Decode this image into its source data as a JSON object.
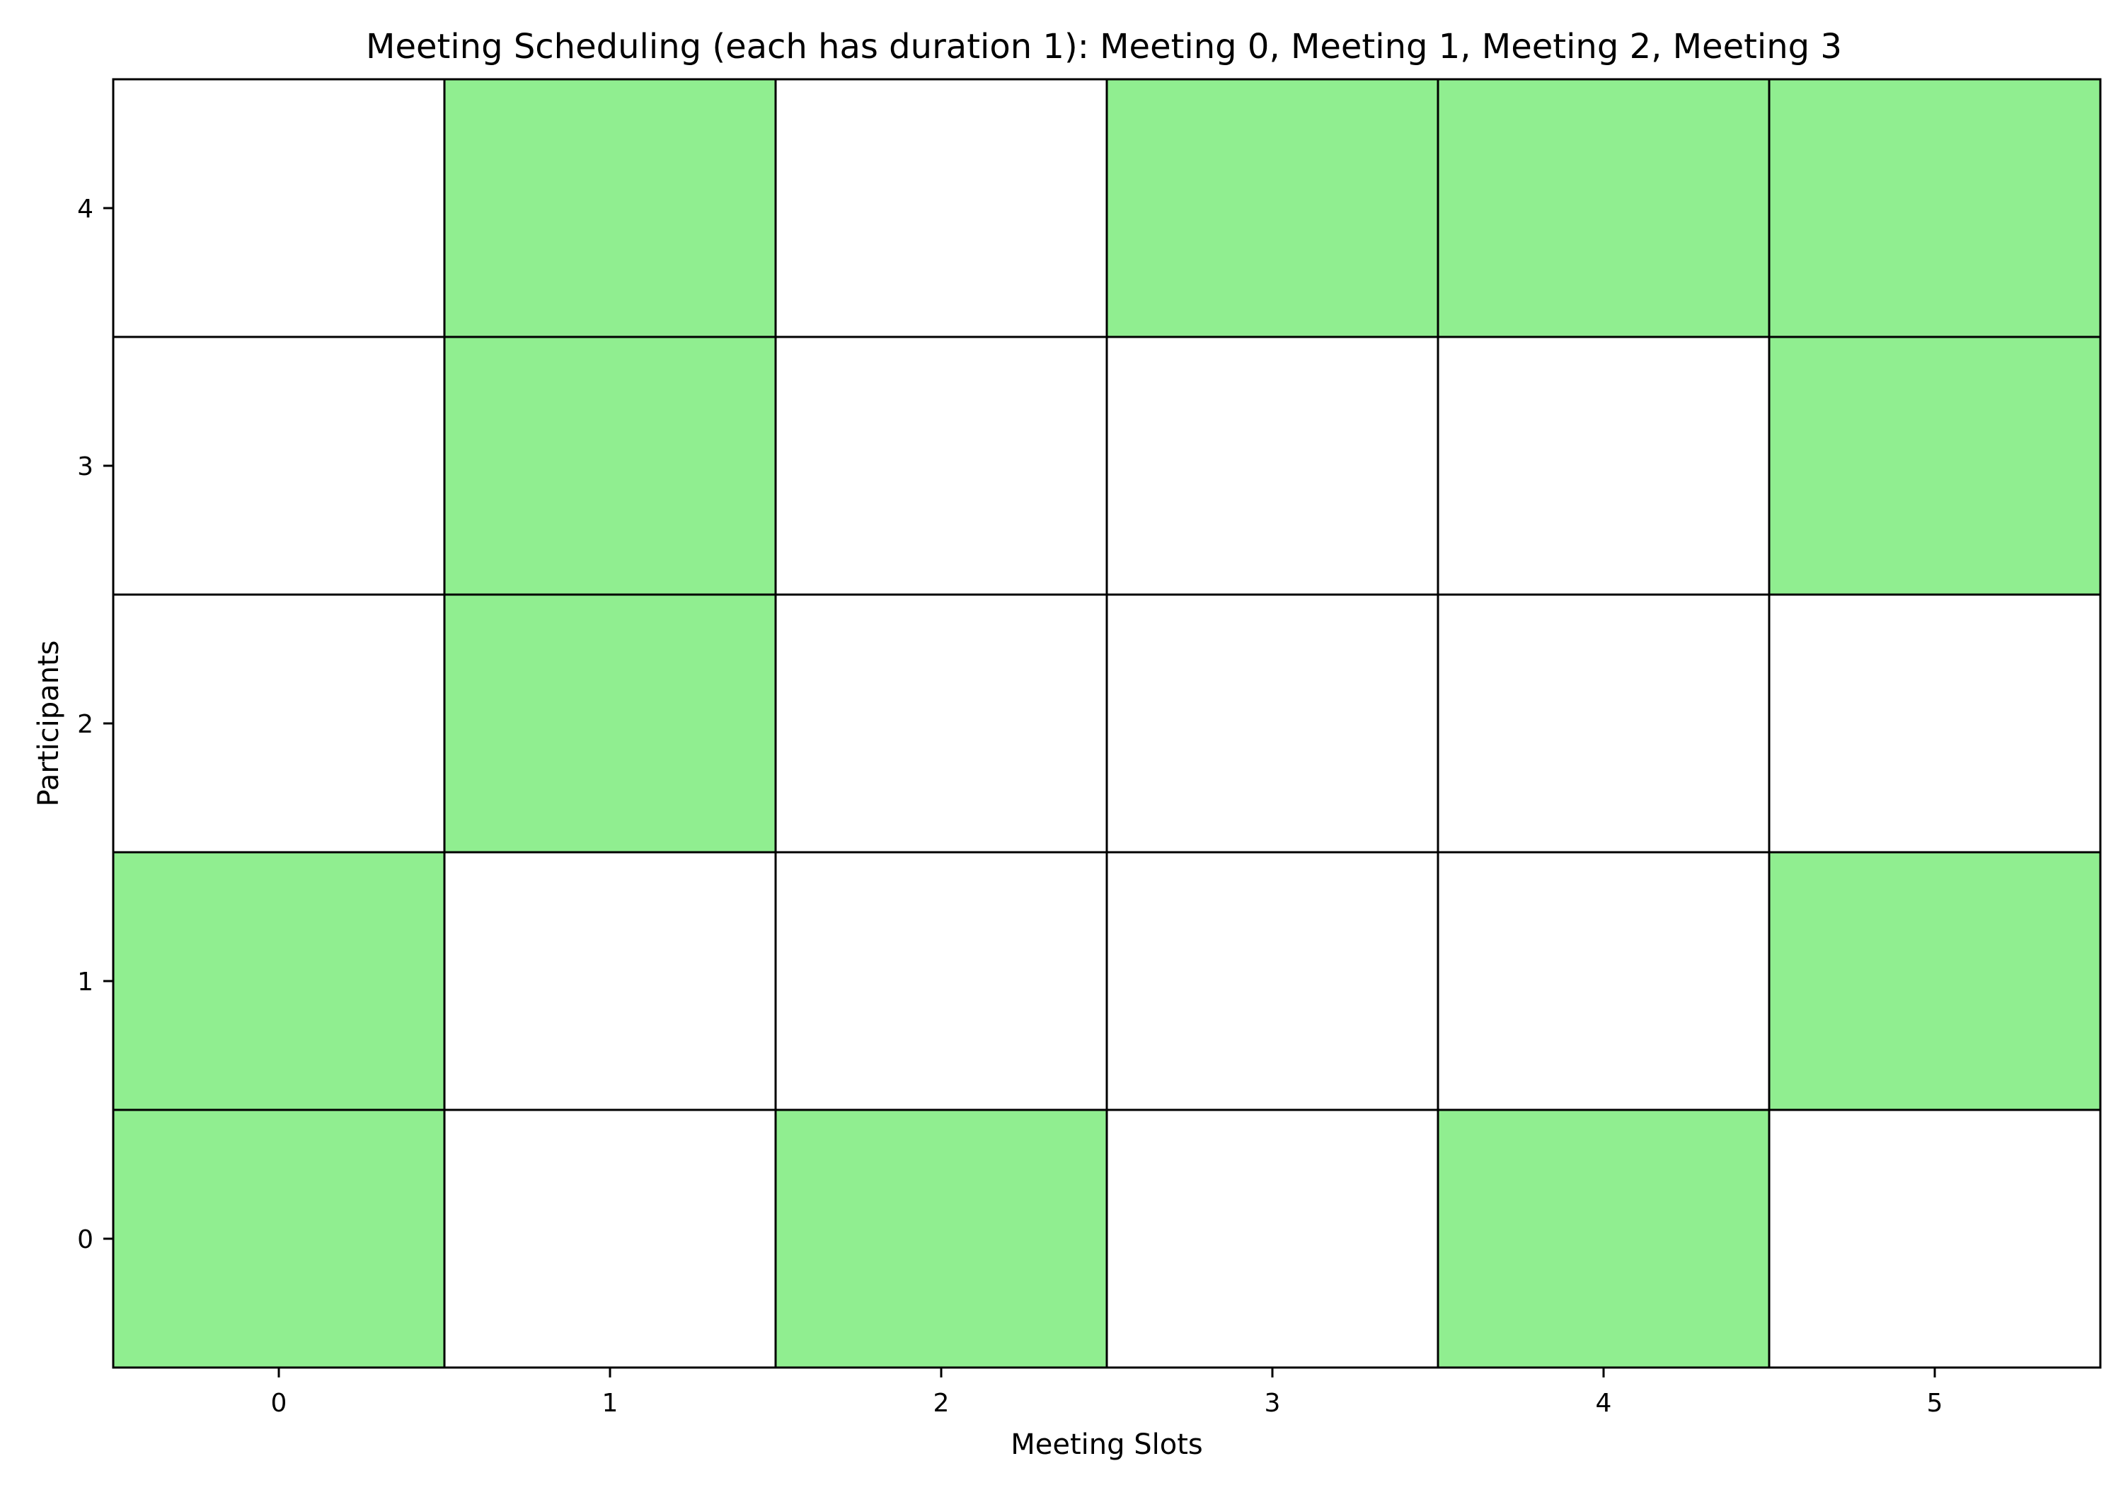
{
  "chart_data": {
    "type": "heatmap",
    "title": "Meeting Scheduling (each has duration 1): Meeting 0, Meeting 1, Meeting 2, Meeting 3",
    "xlabel": "Meeting Slots",
    "ylabel": "Participants",
    "x_categories": [
      "0",
      "1",
      "2",
      "3",
      "4",
      "5"
    ],
    "y_categories": [
      "0",
      "1",
      "2",
      "3",
      "4"
    ],
    "xlim": [
      -0.5,
      5.5
    ],
    "ylim": [
      -0.5,
      4.5
    ],
    "grid": false,
    "cell_colors": {
      "filled": "#90ee90",
      "empty": "#ffffff",
      "edge": "#000000"
    },
    "values": [
      [
        1,
        0,
        1,
        0,
        1,
        0
      ],
      [
        1,
        0,
        0,
        0,
        0,
        1
      ],
      [
        0,
        1,
        0,
        0,
        0,
        0
      ],
      [
        0,
        1,
        0,
        0,
        0,
        1
      ],
      [
        0,
        1,
        0,
        1,
        1,
        1
      ]
    ]
  }
}
